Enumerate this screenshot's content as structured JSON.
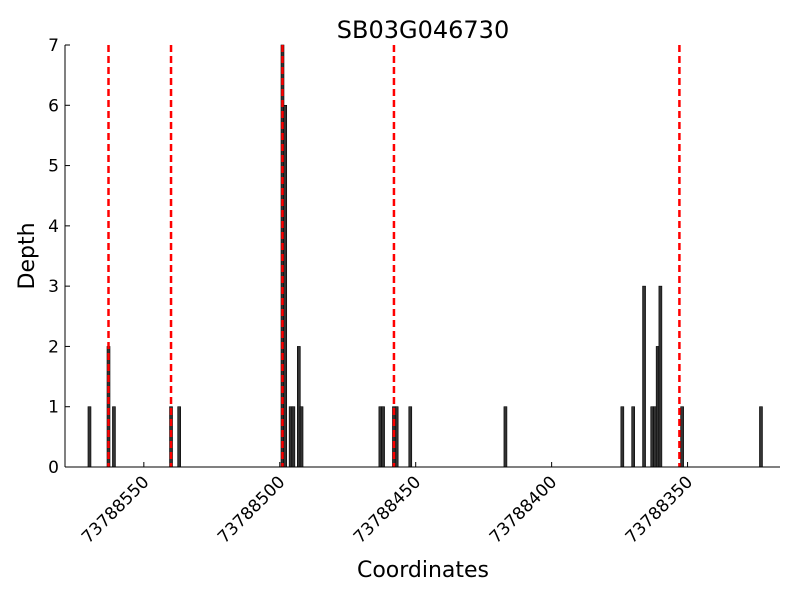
{
  "chart_data": {
    "type": "bar",
    "title": "SB03G046730",
    "xlabel": "Coordinates",
    "ylabel": "Depth",
    "xlim": [
      73788579,
      73788316
    ],
    "ylim": [
      0,
      7
    ],
    "x_reversed": true,
    "y_ticks": [
      "0",
      "1",
      "2",
      "3",
      "4",
      "5",
      "6",
      "7"
    ],
    "x_ticks": [
      {
        "value": 73788550,
        "label": "73788550"
      },
      {
        "value": 73788500,
        "label": "73788500"
      },
      {
        "value": 73788450,
        "label": "73788450"
      },
      {
        "value": 73788400,
        "label": "73788400"
      },
      {
        "value": 73788350,
        "label": "73788350"
      }
    ],
    "bar_color": "#333333",
    "series": [
      {
        "x": [
          73788570,
          73788563,
          73788561,
          73788540,
          73788537,
          73788499,
          73788498,
          73788496,
          73788495,
          73788493,
          73788492,
          73788463,
          73788462,
          73788458,
          73788457,
          73788452,
          73788417,
          73788374,
          73788370,
          73788366,
          73788363,
          73788362,
          73788361,
          73788360,
          73788352,
          73788323
        ],
        "values": [
          1,
          2,
          1,
          1,
          1,
          7,
          6,
          1,
          1,
          2,
          1,
          1,
          1,
          1,
          1,
          1,
          1,
          1,
          1,
          3,
          1,
          1,
          2,
          3,
          1,
          1
        ]
      }
    ],
    "vlines": {
      "color": "#ff0000",
      "style": "dashed",
      "x": [
        73788563,
        73788540,
        73788499,
        73788458,
        73788353
      ]
    },
    "grid": false,
    "legend": "none"
  }
}
